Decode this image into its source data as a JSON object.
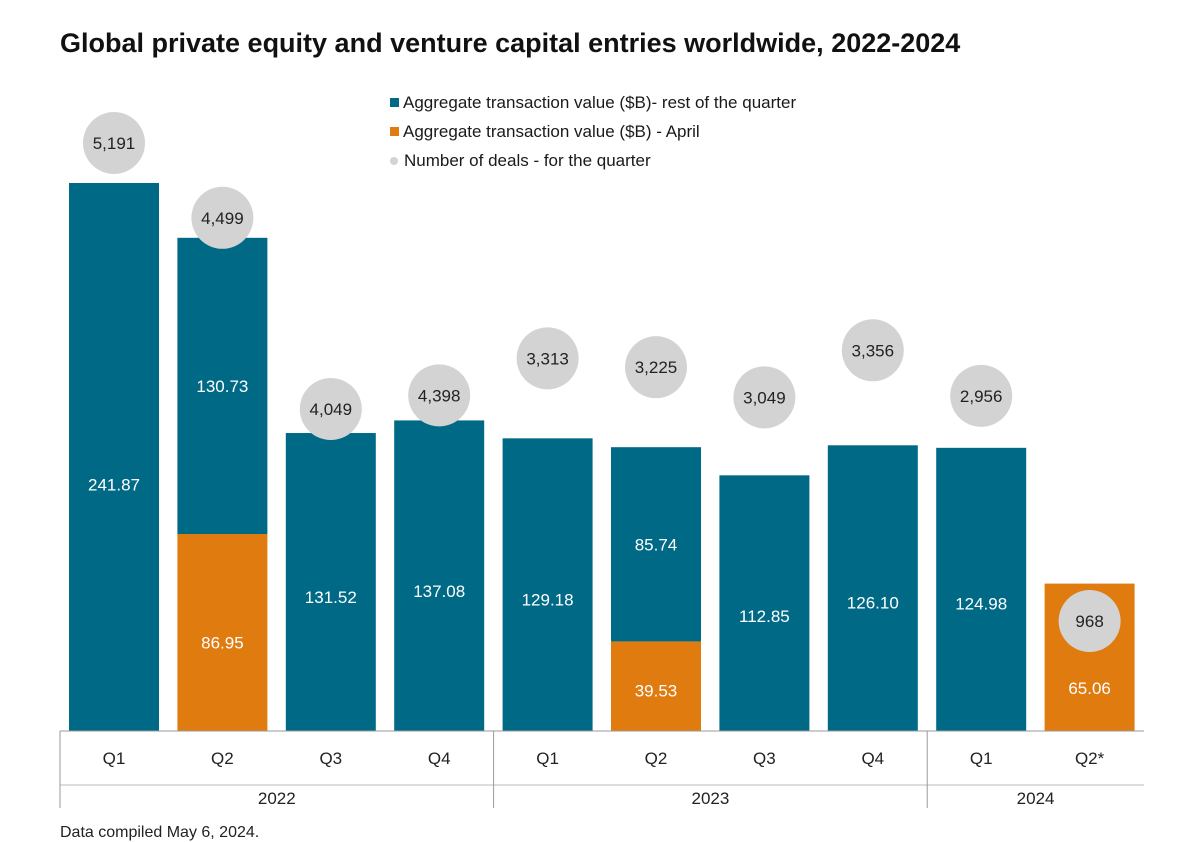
{
  "title": "Global private equity and venture capital entries worldwide, 2022-2024",
  "legend": [
    {
      "label": "Aggregate transaction value ($B)- rest of the quarter",
      "color": "#006a86",
      "shape": "square"
    },
    {
      "label": "Aggregate transaction value ($B) - April",
      "color": "#e07b10",
      "shape": "square"
    },
    {
      "label": "Number of deals - for the quarter",
      "color": "#d3d3d3",
      "shape": "circle"
    }
  ],
  "source_note": "Data compiled May 6, 2024.",
  "chart_data": {
    "type": "bar",
    "stacked": true,
    "title": "Global private equity and venture capital entries worldwide, 2022-2024",
    "categories": [
      "Q1",
      "Q2",
      "Q3",
      "Q4",
      "Q1",
      "Q2",
      "Q3",
      "Q4",
      "Q1",
      "Q2*"
    ],
    "groups": [
      {
        "label": "2022",
        "categories": [
          "Q1",
          "Q2",
          "Q3",
          "Q4"
        ]
      },
      {
        "label": "2023",
        "categories": [
          "Q1",
          "Q2",
          "Q3",
          "Q4"
        ]
      },
      {
        "label": "2024",
        "categories": [
          "Q1",
          "Q2*"
        ]
      }
    ],
    "series": [
      {
        "name": "Aggregate transaction value ($B) - April",
        "color": "#e07b10",
        "values": [
          0,
          86.95,
          0,
          0,
          0,
          39.53,
          0,
          0,
          0,
          65.06
        ],
        "labels": [
          "",
          "86.95",
          "",
          "",
          "",
          "39.53",
          "",
          "",
          "",
          "65.06"
        ]
      },
      {
        "name": "Aggregate transaction value ($B)- rest of the quarter",
        "color": "#006a86",
        "values": [
          241.87,
          130.73,
          131.52,
          137.08,
          129.18,
          85.74,
          112.85,
          126.1,
          124.98,
          0
        ],
        "labels": [
          "241.87",
          "130.73",
          "131.52",
          "137.08",
          "129.18",
          "85.74",
          "112.85",
          "126.10",
          "124.98",
          ""
        ]
      }
    ],
    "deals": {
      "name": "Number of deals - for the quarter",
      "color": "#d3d3d3",
      "values": [
        5191,
        4499,
        4049,
        4398,
        3313,
        3225,
        3049,
        3356,
        2956,
        968
      ],
      "labels": [
        "5,191",
        "4,499",
        "4,049",
        "4,398",
        "3,313",
        "3,225",
        "3,049",
        "3,356",
        "2,956",
        "968"
      ]
    },
    "ylim": [
      0,
      241.87
    ],
    "grid": false,
    "legend_position": "top-center"
  }
}
